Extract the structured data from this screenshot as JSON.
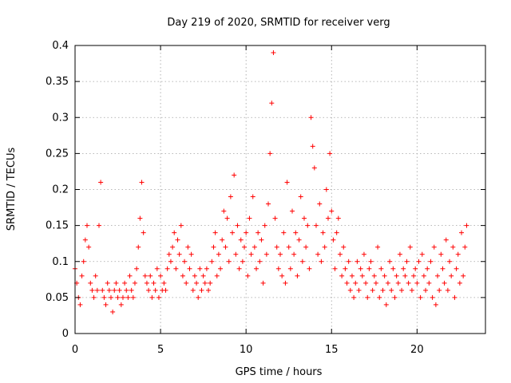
{
  "chart_data": {
    "type": "scatter",
    "title": "Day 219 of 2020, SRMTID for receiver verg",
    "xlabel": "GPS time / hours",
    "ylabel": "SRMTID / TECUs",
    "xlim": [
      0,
      24
    ],
    "ylim": [
      0,
      0.4
    ],
    "xticks": [
      0,
      5,
      10,
      15,
      20
    ],
    "xtick_labels": [
      "0",
      "5",
      "10",
      "15",
      "20"
    ],
    "yticks": [
      0,
      0.05,
      0.1,
      0.15,
      0.2,
      0.25,
      0.3,
      0.35,
      0.4
    ],
    "ytick_labels": [
      "0",
      "0.05",
      "0.1",
      "0.15",
      "0.2",
      "0.25",
      "0.3",
      "0.35",
      "0.4"
    ],
    "grid": true,
    "marker": "+",
    "color": "#ff0000",
    "series": [
      {
        "name": "SRMTID",
        "x": [
          0.0,
          0.1,
          0.2,
          0.3,
          0.4,
          0.5,
          0.6,
          0.7,
          0.8,
          0.9,
          1.0,
          1.1,
          1.2,
          1.3,
          1.4,
          1.5,
          1.6,
          1.7,
          1.8,
          1.9,
          2.0,
          2.1,
          2.2,
          2.3,
          2.4,
          2.5,
          2.6,
          2.7,
          2.8,
          2.9,
          3.0,
          3.1,
          3.2,
          3.3,
          3.4,
          3.5,
          3.6,
          3.7,
          3.8,
          3.9,
          4.0,
          4.1,
          4.2,
          4.3,
          4.4,
          4.5,
          4.6,
          4.7,
          4.8,
          4.9,
          5.0,
          5.1,
          5.2,
          5.3,
          5.4,
          5.5,
          5.6,
          5.7,
          5.8,
          5.9,
          6.0,
          6.1,
          6.2,
          6.3,
          6.4,
          6.5,
          6.6,
          6.7,
          6.8,
          6.9,
          7.0,
          7.1,
          7.2,
          7.3,
          7.4,
          7.5,
          7.6,
          7.7,
          7.8,
          7.9,
          8.0,
          8.1,
          8.2,
          8.3,
          8.4,
          8.5,
          8.6,
          8.7,
          8.8,
          8.9,
          9.0,
          9.1,
          9.2,
          9.3,
          9.4,
          9.5,
          9.6,
          9.7,
          9.8,
          9.9,
          10.0,
          10.1,
          10.2,
          10.3,
          10.4,
          10.5,
          10.6,
          10.7,
          10.8,
          10.9,
          11.0,
          11.1,
          11.2,
          11.3,
          11.4,
          11.5,
          11.6,
          11.7,
          11.8,
          11.9,
          12.0,
          12.1,
          12.2,
          12.3,
          12.4,
          12.5,
          12.6,
          12.7,
          12.8,
          12.9,
          13.0,
          13.1,
          13.2,
          13.3,
          13.4,
          13.5,
          13.6,
          13.7,
          13.8,
          13.9,
          14.0,
          14.1,
          14.2,
          14.3,
          14.4,
          14.5,
          14.6,
          14.7,
          14.8,
          14.9,
          15.0,
          15.1,
          15.2,
          15.3,
          15.4,
          15.5,
          15.6,
          15.7,
          15.8,
          15.9,
          16.0,
          16.1,
          16.2,
          16.3,
          16.4,
          16.5,
          16.6,
          16.7,
          16.8,
          16.9,
          17.0,
          17.1,
          17.2,
          17.3,
          17.4,
          17.5,
          17.6,
          17.7,
          17.8,
          17.9,
          18.0,
          18.1,
          18.2,
          18.3,
          18.4,
          18.5,
          18.6,
          18.7,
          18.8,
          18.9,
          19.0,
          19.1,
          19.2,
          19.3,
          19.4,
          19.5,
          19.6,
          19.7,
          19.8,
          19.9,
          20.0,
          20.1,
          20.2,
          20.3,
          20.4,
          20.5,
          20.6,
          20.7,
          20.8,
          20.9,
          21.0,
          21.1,
          21.2,
          21.3,
          21.4,
          21.5,
          21.6,
          21.7,
          21.8,
          21.9,
          22.0,
          22.1,
          22.2,
          22.3,
          22.4,
          22.5,
          22.6,
          22.7,
          22.8,
          22.9
        ],
        "y": [
          0.09,
          0.07,
          0.05,
          0.04,
          0.08,
          0.1,
          0.13,
          0.15,
          0.12,
          0.07,
          0.06,
          0.05,
          0.08,
          0.06,
          0.15,
          0.21,
          0.06,
          0.05,
          0.04,
          0.07,
          0.06,
          0.05,
          0.03,
          0.06,
          0.07,
          0.05,
          0.06,
          0.04,
          0.05,
          0.07,
          0.06,
          0.05,
          0.08,
          0.06,
          0.05,
          0.07,
          0.09,
          0.12,
          0.16,
          0.21,
          0.14,
          0.08,
          0.07,
          0.06,
          0.08,
          0.05,
          0.07,
          0.06,
          0.09,
          0.05,
          0.08,
          0.06,
          0.07,
          0.06,
          0.09,
          0.11,
          0.1,
          0.12,
          0.14,
          0.09,
          0.13,
          0.11,
          0.15,
          0.08,
          0.1,
          0.07,
          0.12,
          0.09,
          0.11,
          0.06,
          0.08,
          0.07,
          0.05,
          0.09,
          0.06,
          0.08,
          0.07,
          0.09,
          0.06,
          0.07,
          0.1,
          0.12,
          0.14,
          0.08,
          0.11,
          0.09,
          0.13,
          0.17,
          0.12,
          0.16,
          0.1,
          0.19,
          0.14,
          0.22,
          0.11,
          0.15,
          0.09,
          0.13,
          0.1,
          0.12,
          0.14,
          0.08,
          0.16,
          0.11,
          0.19,
          0.12,
          0.09,
          0.14,
          0.1,
          0.13,
          0.07,
          0.15,
          0.11,
          0.18,
          0.25,
          0.32,
          0.39,
          0.16,
          0.12,
          0.09,
          0.11,
          0.08,
          0.14,
          0.07,
          0.21,
          0.12,
          0.09,
          0.17,
          0.11,
          0.14,
          0.08,
          0.13,
          0.19,
          0.1,
          0.16,
          0.12,
          0.15,
          0.09,
          0.3,
          0.26,
          0.23,
          0.15,
          0.11,
          0.18,
          0.1,
          0.14,
          0.12,
          0.2,
          0.16,
          0.25,
          0.17,
          0.13,
          0.09,
          0.14,
          0.16,
          0.11,
          0.08,
          0.12,
          0.09,
          0.07,
          0.1,
          0.06,
          0.08,
          0.05,
          0.07,
          0.1,
          0.06,
          0.09,
          0.08,
          0.11,
          0.07,
          0.05,
          0.09,
          0.1,
          0.06,
          0.08,
          0.07,
          0.12,
          0.05,
          0.09,
          0.06,
          0.08,
          0.04,
          0.07,
          0.1,
          0.06,
          0.09,
          0.05,
          0.08,
          0.07,
          0.11,
          0.06,
          0.09,
          0.08,
          0.1,
          0.07,
          0.12,
          0.06,
          0.08,
          0.09,
          0.07,
          0.1,
          0.05,
          0.11,
          0.08,
          0.06,
          0.09,
          0.07,
          0.1,
          0.05,
          0.12,
          0.04,
          0.08,
          0.06,
          0.11,
          0.09,
          0.07,
          0.13,
          0.06,
          0.1,
          0.08,
          0.12,
          0.05,
          0.09,
          0.11,
          0.07,
          0.14,
          0.08,
          0.12,
          0.15
        ]
      }
    ]
  }
}
